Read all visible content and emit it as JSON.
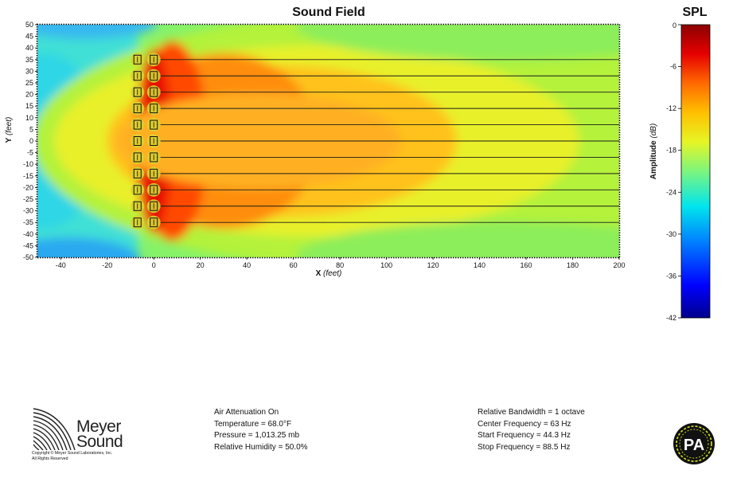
{
  "chart_data": [
    {
      "type": "heatmap",
      "title": "Sound Field",
      "xlabel": "X",
      "xlabel_unit": "(feet)",
      "ylabel": "Y",
      "ylabel_unit": "(feet)",
      "xlim": [
        -50,
        200
      ],
      "ylim": [
        -50,
        50
      ],
      "x_ticks": [
        -40,
        -20,
        0,
        20,
        40,
        60,
        80,
        100,
        120,
        140,
        160,
        180,
        200
      ],
      "y_ticks": [
        50,
        45,
        40,
        35,
        30,
        25,
        20,
        15,
        10,
        5,
        0,
        -5,
        -10,
        -15,
        -20,
        -25,
        -30,
        -35,
        -40,
        -45,
        -50
      ],
      "speaker_columns_x": [
        -7,
        0
      ],
      "speaker_rows_y": [
        35,
        28,
        21,
        14,
        7,
        0,
        -7,
        -14,
        -21,
        -28,
        -35
      ],
      "speaker_line_rows_y": [
        35,
        28,
        21,
        14,
        7,
        0,
        -7,
        -14,
        -21,
        -28,
        -35
      ],
      "speaker_line_x_range": [
        0,
        200
      ]
    },
    {
      "type": "colorbar",
      "title": "SPL",
      "label": "Amplitude",
      "label_unit": "(dB)",
      "range": [
        -42,
        0
      ],
      "ticks": [
        0,
        -6,
        -12,
        -18,
        -24,
        -30,
        -36,
        -42
      ],
      "colormap": [
        "#00008c",
        "#0000ff",
        "#0080ff",
        "#00e5ee",
        "#7cf57e",
        "#e6f525",
        "#ffc000",
        "#ff6a00",
        "#e60000",
        "#8c0000"
      ]
    }
  ],
  "info_left": {
    "lines": [
      "Air Attenuation On",
      "Temperature = 68.0°F",
      "Pressure = 1,013.25  mb",
      "Relative Humidity = 50.0%"
    ]
  },
  "info_right": {
    "lines": [
      "Relative Bandwidth = 1 octave",
      "Center Frequency = 63 Hz",
      "Start Frequency = 44.3 Hz",
      "Stop Frequency = 88.5 Hz"
    ]
  },
  "logo": {
    "line1": "Meyer",
    "line2": "Sound",
    "copyright": "Copyright © Meyer Sound Laboratories, Inc.",
    "rights": "All Rights Reserved"
  },
  "badge": {
    "text": "PA"
  }
}
